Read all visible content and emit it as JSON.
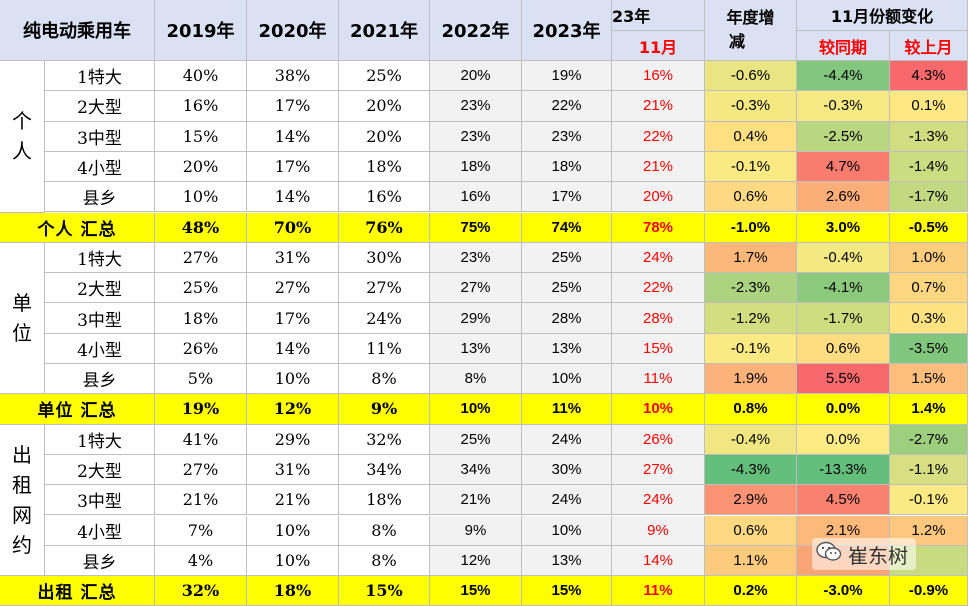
{
  "header": {
    "corner": "纯电动乘用车",
    "years": [
      "2019年",
      "2020年",
      "2021年",
      "2022年",
      "2023年"
    ],
    "col_23_top": "23年",
    "col_23_bottom": "11月",
    "annual_change_l1": "年度增",
    "annual_change_l2": "减",
    "nov_share_change": "11月份额变化",
    "yoy": "较同期",
    "mom": "较上月"
  },
  "sections": [
    {
      "segment_chars": [
        "个",
        "人"
      ],
      "rows": [
        {
          "label": "1特大",
          "y2019": "40%",
          "y2020": "38%",
          "y2021": "25%",
          "y2022": "20%",
          "y2023": "19%",
          "nov": "16%",
          "annual": "-0.6%",
          "yoy": "-4.4%",
          "mom": "4.3%"
        },
        {
          "label": "2大型",
          "y2019": "16%",
          "y2020": "17%",
          "y2021": "20%",
          "y2022": "23%",
          "y2023": "22%",
          "nov": "21%",
          "annual": "-0.3%",
          "yoy": "-0.3%",
          "mom": "0.1%"
        },
        {
          "label": "3中型",
          "y2019": "15%",
          "y2020": "14%",
          "y2021": "20%",
          "y2022": "23%",
          "y2023": "23%",
          "nov": "22%",
          "annual": "0.4%",
          "yoy": "-2.5%",
          "mom": "-1.3%"
        },
        {
          "label": "4小型",
          "y2019": "20%",
          "y2020": "17%",
          "y2021": "18%",
          "y2022": "18%",
          "y2023": "18%",
          "nov": "21%",
          "annual": "-0.1%",
          "yoy": "4.7%",
          "mom": "-1.4%"
        },
        {
          "label": "县乡",
          "y2019": "10%",
          "y2020": "14%",
          "y2021": "16%",
          "y2022": "16%",
          "y2023": "17%",
          "nov": "20%",
          "annual": "0.6%",
          "yoy": "2.6%",
          "mom": "-1.7%"
        }
      ],
      "total": {
        "label": "个人 汇总",
        "y2019": "48%",
        "y2020": "70%",
        "y2021": "76%",
        "y2022": "75%",
        "y2023": "74%",
        "nov": "78%",
        "annual": "-1.0%",
        "yoy": "3.0%",
        "mom": "-0.5%"
      }
    },
    {
      "segment_chars": [
        "单",
        "位"
      ],
      "rows": [
        {
          "label": "1特大",
          "y2019": "27%",
          "y2020": "31%",
          "y2021": "30%",
          "y2022": "23%",
          "y2023": "25%",
          "nov": "24%",
          "annual": "1.7%",
          "yoy": "-0.4%",
          "mom": "1.0%"
        },
        {
          "label": "2大型",
          "y2019": "25%",
          "y2020": "27%",
          "y2021": "27%",
          "y2022": "27%",
          "y2023": "25%",
          "nov": "22%",
          "annual": "-2.3%",
          "yoy": "-4.1%",
          "mom": "0.7%"
        },
        {
          "label": "3中型",
          "y2019": "18%",
          "y2020": "17%",
          "y2021": "24%",
          "y2022": "29%",
          "y2023": "28%",
          "nov": "28%",
          "annual": "-1.2%",
          "yoy": "-1.7%",
          "mom": "0.3%"
        },
        {
          "label": "4小型",
          "y2019": "26%",
          "y2020": "14%",
          "y2021": "11%",
          "y2022": "13%",
          "y2023": "13%",
          "nov": "15%",
          "annual": "-0.1%",
          "yoy": "0.6%",
          "mom": "-3.5%"
        },
        {
          "label": "县乡",
          "y2019": "5%",
          "y2020": "10%",
          "y2021": "8%",
          "y2022": "8%",
          "y2023": "10%",
          "nov": "11%",
          "annual": "1.9%",
          "yoy": "5.5%",
          "mom": "1.5%"
        }
      ],
      "total": {
        "label": "单位 汇总",
        "y2019": "19%",
        "y2020": "12%",
        "y2021": "9%",
        "y2022": "10%",
        "y2023": "11%",
        "nov": "10%",
        "annual": "0.8%",
        "yoy": "0.0%",
        "mom": "1.4%"
      }
    },
    {
      "segment_chars": [
        "出",
        "租",
        "网",
        "约"
      ],
      "rows": [
        {
          "label": "1特大",
          "y2019": "41%",
          "y2020": "29%",
          "y2021": "32%",
          "y2022": "25%",
          "y2023": "24%",
          "nov": "26%",
          "annual": "-0.4%",
          "yoy": "0.0%",
          "mom": "-2.7%"
        },
        {
          "label": "2大型",
          "y2019": "27%",
          "y2020": "31%",
          "y2021": "34%",
          "y2022": "34%",
          "y2023": "30%",
          "nov": "27%",
          "annual": "-4.3%",
          "yoy": "-13.3%",
          "mom": "-1.1%"
        },
        {
          "label": "3中型",
          "y2019": "21%",
          "y2020": "21%",
          "y2021": "18%",
          "y2022": "21%",
          "y2023": "24%",
          "nov": "24%",
          "annual": "2.9%",
          "yoy": "4.5%",
          "mom": "-0.1%"
        },
        {
          "label": "4小型",
          "y2019": "7%",
          "y2020": "10%",
          "y2021": "8%",
          "y2022": "9%",
          "y2023": "10%",
          "nov": "9%",
          "annual": "0.6%",
          "yoy": "2.1%",
          "mom": "1.2%"
        },
        {
          "label": "县乡",
          "y2019": "4%",
          "y2020": "10%",
          "y2021": "8%",
          "y2022": "12%",
          "y2023": "13%",
          "nov": "14%",
          "annual": "1.1%",
          "yoy": "",
          "mom": ""
        }
      ],
      "total": {
        "label": "出租 汇总",
        "y2019": "32%",
        "y2020": "18%",
        "y2021": "15%",
        "y2022": "15%",
        "y2023": "15%",
        "nov": "11%",
        "annual": "0.2%",
        "yoy": "-3.0%",
        "mom": "-0.9%"
      }
    }
  ],
  "colors": {
    "header_bg": "#d9e1f2",
    "total_bg": "#ffff00",
    "highlight_text": "#ff0000",
    "heat_positive": "#f8696b",
    "heat_neutral": "#ffeb84",
    "heat_negative": "#63be7b"
  },
  "watermark": {
    "icon": "wechat-icon",
    "text": "崔东树"
  }
}
